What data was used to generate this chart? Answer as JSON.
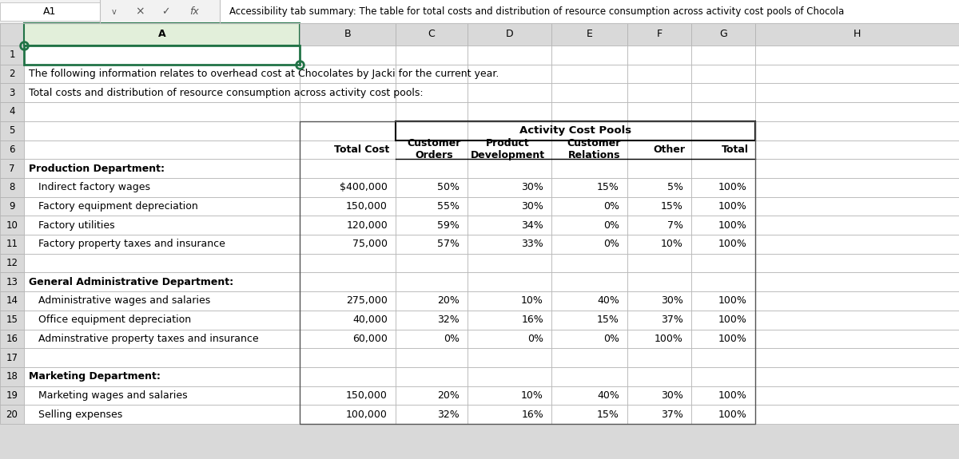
{
  "formula_bar_text": "Accessibility tab summary: The table for total costs and distribution of resource consumption across activity cost pools of Chocola",
  "cell_ref": "A1",
  "intro_row2": "The following information relates to overhead cost at Chocolates by Jacki for the current year.",
  "intro_row3": "Total costs and distribution of resource consumption across activity cost pools:",
  "activity_cost_pools_header": "Activity Cost Pools",
  "subheaders_row5_bottom_line": true,
  "col_header_labels": [
    "A",
    "B",
    "C",
    "D",
    "E",
    "F",
    "G",
    "H"
  ],
  "rows": [
    {
      "row": 7,
      "label": "Production Department:",
      "bold": true,
      "indent": false,
      "total_cost": "",
      "C": "",
      "D": "",
      "E": "",
      "F": "",
      "G": ""
    },
    {
      "row": 8,
      "label": "Indirect factory wages",
      "bold": false,
      "indent": true,
      "total_cost": "$400,000",
      "C": "50%",
      "D": "30%",
      "E": "15%",
      "F": "5%",
      "G": "100%"
    },
    {
      "row": 9,
      "label": "Factory equipment depreciation",
      "bold": false,
      "indent": true,
      "total_cost": "150,000",
      "C": "55%",
      "D": "30%",
      "E": "0%",
      "F": "15%",
      "G": "100%"
    },
    {
      "row": 10,
      "label": "Factory utilities",
      "bold": false,
      "indent": true,
      "total_cost": "120,000",
      "C": "59%",
      "D": "34%",
      "E": "0%",
      "F": "7%",
      "G": "100%"
    },
    {
      "row": 11,
      "label": "Factory property taxes and insurance",
      "bold": false,
      "indent": true,
      "total_cost": "75,000",
      "C": "57%",
      "D": "33%",
      "E": "0%",
      "F": "10%",
      "G": "100%"
    },
    {
      "row": 12,
      "label": "",
      "bold": false,
      "indent": false,
      "total_cost": "",
      "C": "",
      "D": "",
      "E": "",
      "F": "",
      "G": ""
    },
    {
      "row": 13,
      "label": "General Administrative Department:",
      "bold": true,
      "indent": false,
      "total_cost": "",
      "C": "",
      "D": "",
      "E": "",
      "F": "",
      "G": ""
    },
    {
      "row": 14,
      "label": "Administrative wages and salaries",
      "bold": false,
      "indent": true,
      "total_cost": "275,000",
      "C": "20%",
      "D": "10%",
      "E": "40%",
      "F": "30%",
      "G": "100%"
    },
    {
      "row": 15,
      "label": "Office equipment depreciation",
      "bold": false,
      "indent": true,
      "total_cost": "40,000",
      "C": "32%",
      "D": "16%",
      "E": "15%",
      "F": "37%",
      "G": "100%"
    },
    {
      "row": 16,
      "label": "Adminstrative property taxes and insurance",
      "bold": false,
      "indent": true,
      "total_cost": "60,000",
      "C": "0%",
      "D": "0%",
      "E": "0%",
      "F": "100%",
      "G": "100%"
    },
    {
      "row": 17,
      "label": "",
      "bold": false,
      "indent": false,
      "total_cost": "",
      "C": "",
      "D": "",
      "E": "",
      "F": "",
      "G": ""
    },
    {
      "row": 18,
      "label": "Marketing Department:",
      "bold": true,
      "indent": false,
      "total_cost": "",
      "C": "",
      "D": "",
      "E": "",
      "F": "",
      "G": ""
    },
    {
      "row": 19,
      "label": "Marketing wages and salaries",
      "bold": false,
      "indent": true,
      "total_cost": "150,000",
      "C": "20%",
      "D": "10%",
      "E": "40%",
      "F": "30%",
      "G": "100%"
    },
    {
      "row": 20,
      "label": "Selling expenses",
      "bold": false,
      "indent": true,
      "total_cost": "100,000",
      "C": "32%",
      "D": "16%",
      "E": "15%",
      "F": "37%",
      "G": "100%"
    }
  ],
  "bg_gray": "#d9d9d9",
  "bg_white": "#ffffff",
  "grid_color": "#b0b0b0",
  "text_color": "#000000",
  "green_border": "#217346",
  "green_header_bg": "#e2efda",
  "formula_bar_bg": "#f2f2f2"
}
